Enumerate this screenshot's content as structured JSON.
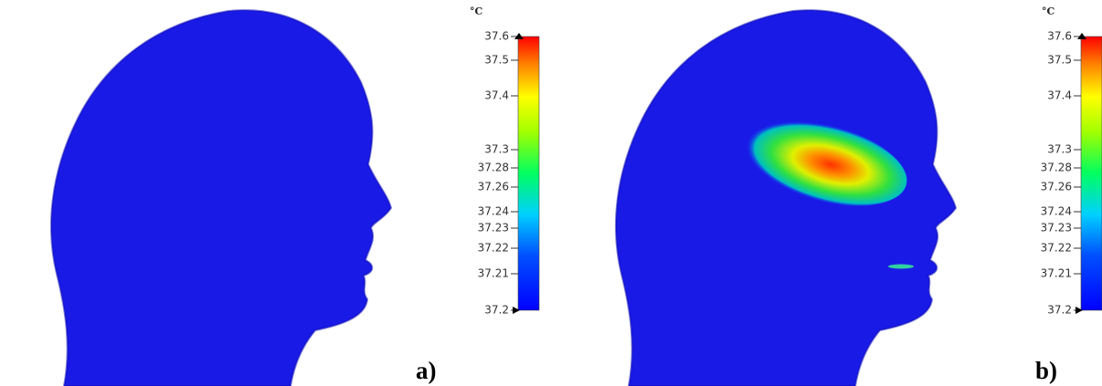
{
  "panels": [
    {
      "label": "a)",
      "colorbar": {
        "unit": "°C",
        "ticks": [
          "37.6",
          "37.5",
          "37.4",
          "37.3",
          "37.28",
          "37.26",
          "37.24",
          "37.23",
          "37.22",
          "37.21",
          "37.2"
        ]
      }
    },
    {
      "label": "b)",
      "colorbar": {
        "unit": "°C",
        "ticks": [
          "37.6",
          "37.5",
          "37.4",
          "37.3",
          "37.28",
          "37.26",
          "37.24",
          "37.23",
          "37.22",
          "37.21",
          "37.2"
        ]
      }
    }
  ]
}
